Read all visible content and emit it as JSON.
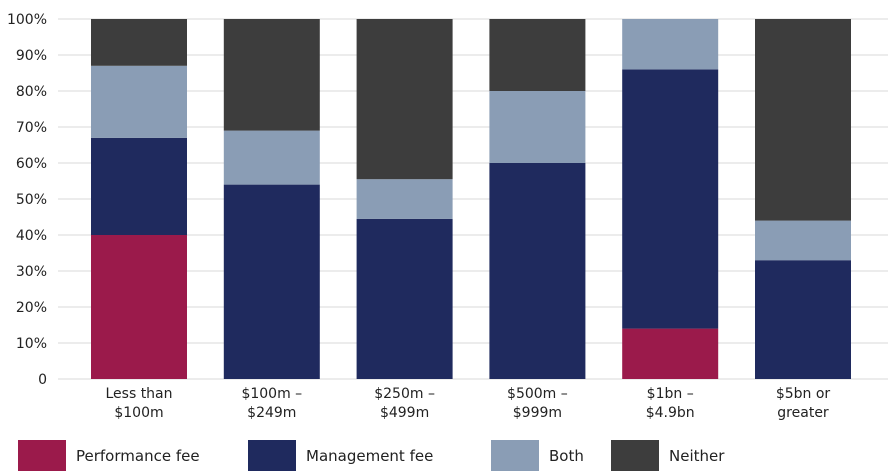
{
  "chart_data": {
    "type": "bar",
    "stacked": true,
    "categories": [
      [
        "Less than",
        "$100m"
      ],
      [
        "$100m –",
        "$249m"
      ],
      [
        "$250m –",
        "$499m"
      ],
      [
        "$500m –",
        "$999m"
      ],
      [
        "$1bn –",
        "$4.9bn"
      ],
      [
        "$5bn or",
        "greater"
      ]
    ],
    "series": [
      {
        "name": "Performance fee",
        "color": "#9b1a4b",
        "values": [
          40,
          0,
          0,
          0,
          14,
          0
        ]
      },
      {
        "name": "Management fee",
        "color": "#1f2a5e",
        "values": [
          27,
          54,
          44.5,
          60,
          72,
          33
        ]
      },
      {
        "name": "Both",
        "color": "#8a9db5",
        "values": [
          20,
          15,
          11,
          20,
          14,
          11
        ]
      },
      {
        "name": "Neither",
        "color": "#3d3d3d",
        "values": [
          13,
          31,
          44.5,
          20,
          0,
          56
        ]
      }
    ],
    "ylim": [
      0,
      100
    ],
    "yticks": [
      "0",
      "10%",
      "20%",
      "30%",
      "40%",
      "50%",
      "60%",
      "70%",
      "80%",
      "90%",
      "100%"
    ],
    "grid": true,
    "legend_position": "bottom",
    "title": "",
    "xlabel": "",
    "ylabel": ""
  }
}
